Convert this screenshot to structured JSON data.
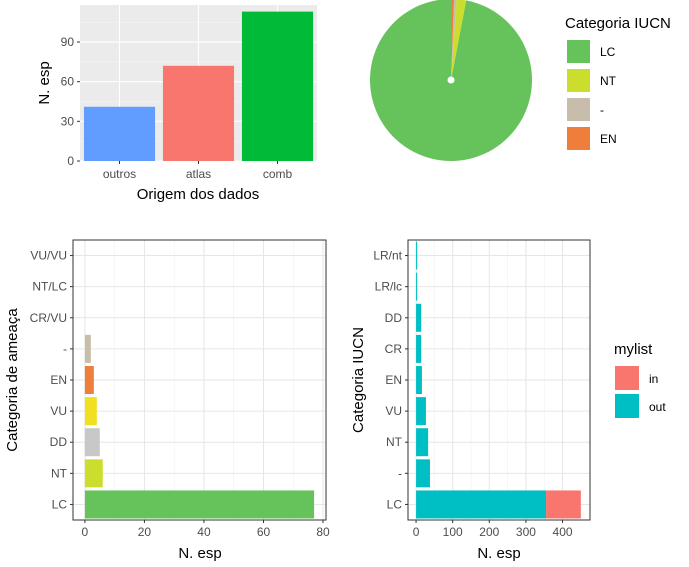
{
  "chart_data": [
    {
      "id": "bar_origem",
      "type": "bar",
      "categories": [
        "outros",
        "atlas",
        "comb"
      ],
      "values": [
        41,
        72,
        113
      ],
      "colors": [
        "#619CFF",
        "#F8766D",
        "#00BA38"
      ],
      "xlabel": "Origem dos dados",
      "ylabel": "N. esp",
      "yticks": [
        0,
        30,
        60,
        90
      ],
      "ylim": [
        0,
        118
      ],
      "grid": true,
      "background": "#EBEBEB"
    },
    {
      "id": "pie_iucn",
      "type": "pie",
      "legend_title": "Categoria IUCN",
      "legend_position": "right",
      "slices": [
        {
          "label": "LC",
          "value": 97.0,
          "color": "#66C25A"
        },
        {
          "label": "NT",
          "value": 1.9,
          "color": "#CBDE2D"
        },
        {
          "label": "-",
          "value": 0.5,
          "color": "#C8BCAA"
        },
        {
          "label": "EN",
          "value": 0.6,
          "color": "#EE7E3A"
        }
      ]
    },
    {
      "id": "hbar_ameaca",
      "type": "bar",
      "orientation": "horizontal",
      "categories": [
        "VU/VU",
        "NT/LC",
        "CR/VU",
        "-",
        "EN",
        "VU",
        "DD",
        "NT",
        "LC"
      ],
      "values": [
        0,
        0,
        0,
        2,
        3,
        4,
        5,
        6,
        77
      ],
      "colors": [
        "#C8BCAA",
        "#C8BCAA",
        "#C8BCAA",
        "#C8BCAA",
        "#EE7E3A",
        "#F0E01F",
        "#C8C8C8",
        "#CBDE2D",
        "#66C25A"
      ],
      "xlabel": "N. esp",
      "ylabel": "Categoria de ameaça",
      "xticks": [
        0,
        20,
        40,
        60,
        80
      ],
      "xlim": [
        -4,
        81
      ],
      "grid": true,
      "background": "#FFFFFF"
    },
    {
      "id": "hbar_iucn_mylist",
      "type": "bar",
      "orientation": "horizontal",
      "stacked": true,
      "categories": [
        "LR/nt",
        "LR/lc",
        "DD",
        "CR",
        "EN",
        "VU",
        "NT",
        "-",
        "LC"
      ],
      "series": [
        {
          "name": "out",
          "color": "#00BFC4",
          "values": [
            3,
            3,
            14,
            14,
            16,
            27,
            33,
            38,
            355
          ]
        },
        {
          "name": "in",
          "color": "#F8766D",
          "values": [
            0,
            0,
            0,
            0,
            0,
            0,
            0,
            0,
            95
          ]
        }
      ],
      "xlabel": "N. esp",
      "ylabel": "Categoria IUCN",
      "xticks": [
        0,
        100,
        200,
        300,
        400
      ],
      "xlim": [
        -22,
        475
      ],
      "legend_title": "mylist",
      "legend_order": [
        "in",
        "out"
      ],
      "legend_position": "right",
      "grid": true,
      "background": "#FFFFFF"
    }
  ]
}
